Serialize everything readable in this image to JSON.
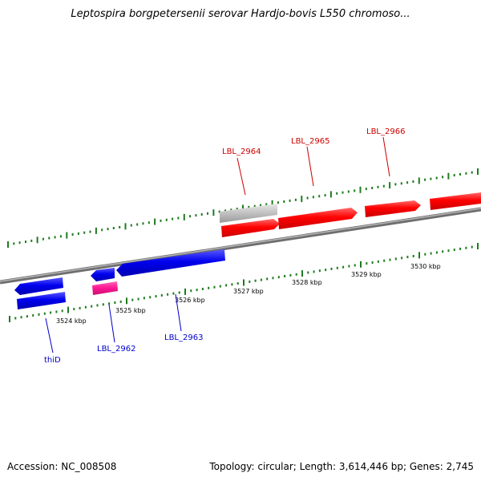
{
  "title": "Leptospira borgpetersenii serovar Hardjo-bovis L550 chromoso...",
  "footer": {
    "accession": "Accession: NC_008508",
    "summary": "Topology: circular; Length: 3,614,446 bp; Genes: 2,745"
  },
  "colors": {
    "forward_gene": "#ff0000",
    "reverse_gene": "#0000ee",
    "rna_gene": "#ff1493",
    "pseudo_gene": "#bdbdbd",
    "tick": "#1e7b1e",
    "forward_label": "#cc0000",
    "reverse_label": "#0000cc"
  },
  "scale_labels": [
    "3524 kbp",
    "3525 kbp",
    "3526 kbp",
    "3527 kbp",
    "3528 kbp",
    "3529 kbp",
    "3530 kbp"
  ],
  "gene_labels": {
    "forward": [
      "LBL_2964",
      "LBL_2965",
      "LBL_2966"
    ],
    "reverse": [
      "thiD",
      "LBL_2962",
      "LBL_2963"
    ]
  }
}
